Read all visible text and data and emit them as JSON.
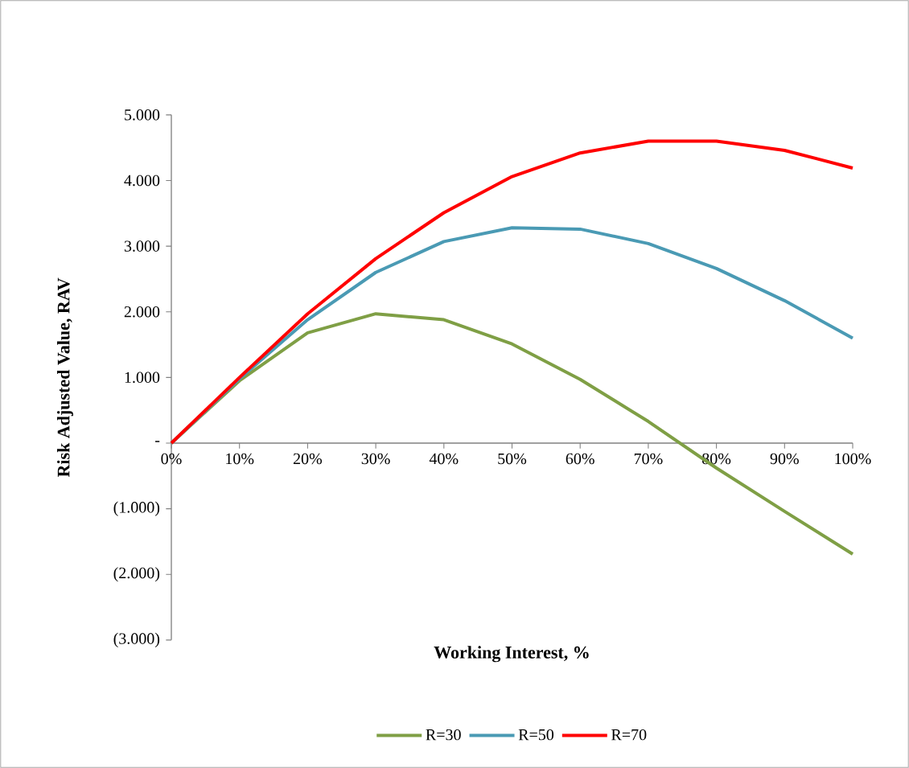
{
  "chart_data": {
    "type": "line",
    "xlabel": "Working Interest, %",
    "ylabel": "Risk Adjusted Value, RAV",
    "x": [
      0,
      10,
      20,
      30,
      40,
      50,
      60,
      70,
      80,
      90,
      100
    ],
    "series": [
      {
        "name": "R=30",
        "color": "#7f9f45",
        "values": [
          0,
          950,
          1680,
          1970,
          1880,
          1510,
          970,
          330,
          -380,
          -1040,
          -1690
        ]
      },
      {
        "name": "R=50",
        "color": "#4a9ab4",
        "values": [
          0,
          980,
          1880,
          2600,
          3070,
          3280,
          3260,
          3040,
          2660,
          2170,
          1600
        ]
      },
      {
        "name": "R=70",
        "color": "#ff0000",
        "values": [
          0,
          1000,
          1970,
          2810,
          3510,
          4060,
          4420,
          4600,
          4600,
          4460,
          4190
        ]
      }
    ],
    "xlim": [
      0,
      100
    ],
    "ylim": [
      -3000,
      5000
    ],
    "xticks": [
      {
        "value": 0,
        "label": "0%"
      },
      {
        "value": 10,
        "label": "10%"
      },
      {
        "value": 20,
        "label": "20%"
      },
      {
        "value": 30,
        "label": "30%"
      },
      {
        "value": 40,
        "label": "40%"
      },
      {
        "value": 50,
        "label": "50%"
      },
      {
        "value": 60,
        "label": "60%"
      },
      {
        "value": 70,
        "label": "70%"
      },
      {
        "value": 80,
        "label": "80%"
      },
      {
        "value": 90,
        "label": "90%"
      },
      {
        "value": 100,
        "label": "100%"
      }
    ],
    "yticks": [
      {
        "value": -3000,
        "label": "(3.000)"
      },
      {
        "value": -2000,
        "label": "(2.000)"
      },
      {
        "value": -1000,
        "label": "(1.000)"
      },
      {
        "value": 0,
        "label": "-"
      },
      {
        "value": 1000,
        "label": "1.000"
      },
      {
        "value": 2000,
        "label": "2.000"
      },
      {
        "value": 3000,
        "label": "3.000"
      },
      {
        "value": 4000,
        "label": "4.000"
      },
      {
        "value": 5000,
        "label": "5.000"
      }
    ],
    "legend": "bottom",
    "line_style": "solid"
  }
}
